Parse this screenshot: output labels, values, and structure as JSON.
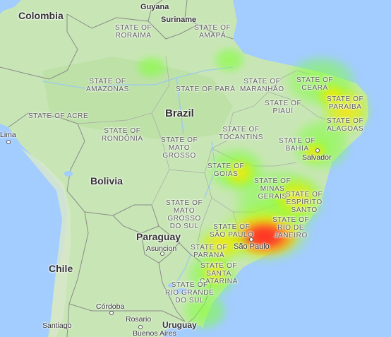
{
  "countries": [
    {
      "id": "colombia",
      "label": "Colombia"
    },
    {
      "id": "guyana",
      "label": "Guyana"
    },
    {
      "id": "suriname",
      "label": "Suriname"
    },
    {
      "id": "brazil",
      "label": "Brazil"
    },
    {
      "id": "bolivia",
      "label": "Bolivia"
    },
    {
      "id": "paraguay",
      "label": "Paraguay"
    },
    {
      "id": "chile",
      "label": "Chile"
    },
    {
      "id": "uruguay",
      "label": "Uruguay"
    }
  ],
  "states": [
    {
      "id": "roraima",
      "label": "STATE OF\nRORAIMA"
    },
    {
      "id": "amapa",
      "label": "STATE OF\nAMAPÁ"
    },
    {
      "id": "amazonas",
      "label": "STATE OF\nAMAZONAS"
    },
    {
      "id": "para",
      "label": "STATE OF PARÁ"
    },
    {
      "id": "maranhao",
      "label": "STATE OF\nMARANHÃO"
    },
    {
      "id": "ceara",
      "label": "STATE OF\nCEARÁ"
    },
    {
      "id": "paraiba",
      "label": "STATE OF\nPARAÍBA"
    },
    {
      "id": "piaui",
      "label": "STATE OF\nPIAUÍ"
    },
    {
      "id": "alagoas",
      "label": "STATE OF\nALAGOAS"
    },
    {
      "id": "acre",
      "label": "STATE OF ACRE"
    },
    {
      "id": "rondonia",
      "label": "STATE OF\nRONDÔNIA"
    },
    {
      "id": "tocantins",
      "label": "STATE OF\nTOCANTINS"
    },
    {
      "id": "bahia",
      "label": "STATE OF\nBAHIA"
    },
    {
      "id": "mato-grosso",
      "label": "STATE OF\nMATO\nGROSSO"
    },
    {
      "id": "goias",
      "label": "STATE OF\nGOIÁS"
    },
    {
      "id": "minas-gerais",
      "label": "STATE OF\nMINAS\nGERAIS"
    },
    {
      "id": "espirito-santo",
      "label": "STATE OF\nESPÍRITO\nSANTO"
    },
    {
      "id": "mato-grosso-do-sul",
      "label": "STATE OF\nMATO\nGROSSO\nDO SUL"
    },
    {
      "id": "sao-paulo",
      "label": "STATE OF\nSÃO PAULO"
    },
    {
      "id": "rio-de-janeiro",
      "label": "STATE OF\nRIO DE\nJANEIRO"
    },
    {
      "id": "parana",
      "label": "STATE OF\nPARANÁ"
    },
    {
      "id": "santa-catarina",
      "label": "STATE OF\nSANTA\nCATARINA"
    },
    {
      "id": "rio-grande-do-sul",
      "label": "STATE OF\nRIO GRANDE\nDO SUL"
    }
  ],
  "cities": [
    {
      "id": "lima",
      "label": "Lima"
    },
    {
      "id": "salvador",
      "label": "Salvador"
    },
    {
      "id": "sao-paulo",
      "label": "São Paulo"
    },
    {
      "id": "asuncion",
      "label": "Asuncion"
    },
    {
      "id": "cordoba",
      "label": "Córdoba"
    },
    {
      "id": "rosario",
      "label": "Rosario"
    },
    {
      "id": "santiago",
      "label": "Santiago"
    },
    {
      "id": "buenos-aires",
      "label": "Buenos Aires"
    }
  ],
  "colors": {
    "ocean": "#a3ccff",
    "land": "#c8e6b5",
    "land_forest": "#b8dca0",
    "border": "#8a8a8a",
    "heat_low": "#7cff3c",
    "heat_mid": "#fff000",
    "heat_high": "#ff2a2a"
  },
  "heatmap": {
    "description_levels": [
      "low",
      "mid",
      "high"
    ],
    "hotspot": "São Paulo"
  }
}
